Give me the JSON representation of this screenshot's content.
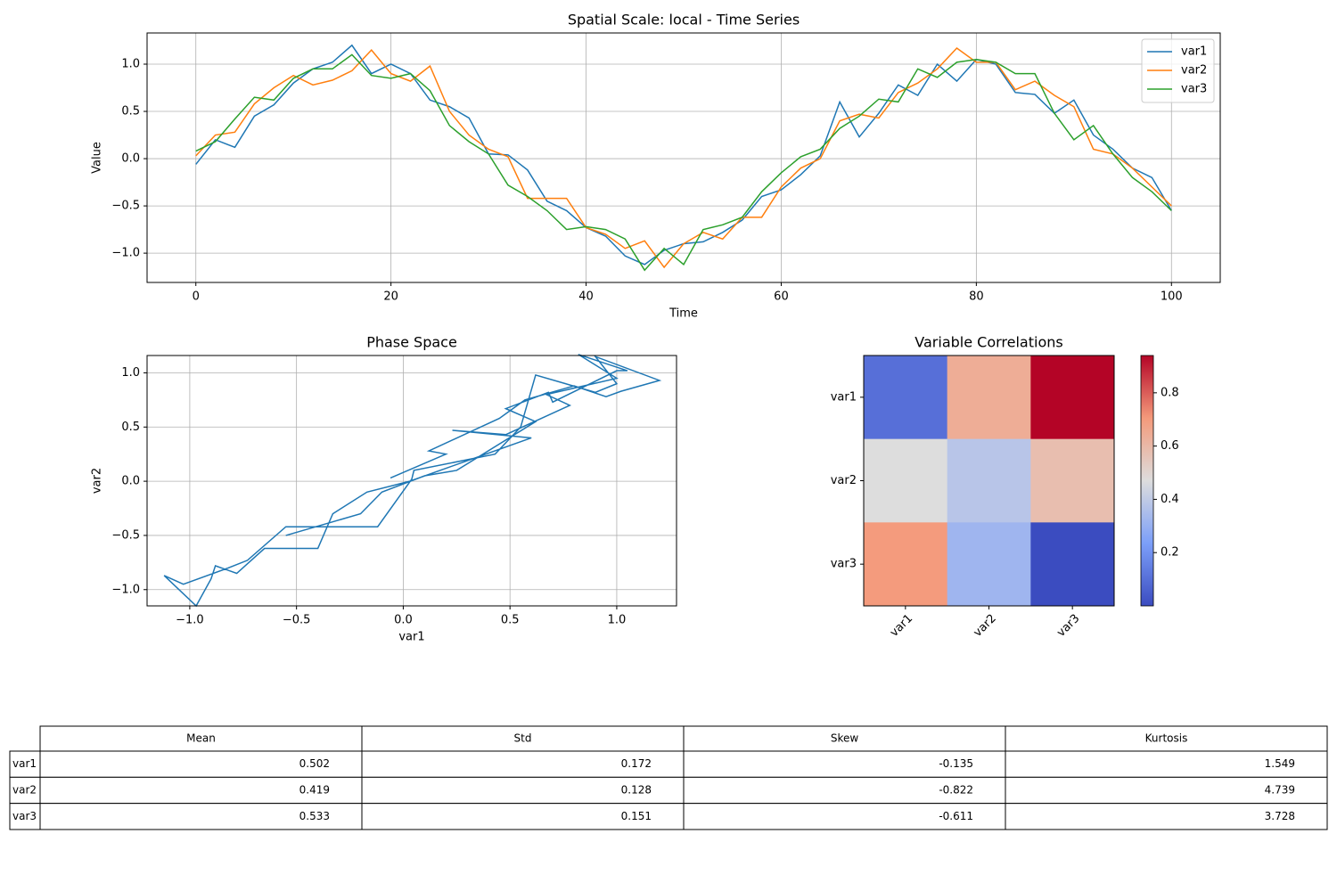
{
  "chart_data": [
    {
      "type": "line",
      "title": "Spatial Scale: local - Time Series",
      "xlabel": "Time",
      "ylabel": "Value",
      "x": [
        0,
        2,
        4,
        6,
        8,
        10,
        12,
        14,
        16,
        18,
        20,
        22,
        24,
        26,
        28,
        30,
        32,
        34,
        36,
        38,
        40,
        42,
        44,
        46,
        48,
        50,
        52,
        54,
        56,
        58,
        60,
        62,
        64,
        66,
        68,
        70,
        72,
        74,
        76,
        78,
        80,
        82,
        84,
        86,
        88,
        90,
        92,
        94,
        96,
        98,
        100
      ],
      "series": [
        {
          "name": "var1",
          "color": "#1f77b4",
          "values": [
            -0.06,
            0.2,
            0.12,
            0.45,
            0.57,
            0.8,
            0.95,
            1.02,
            1.2,
            0.9,
            1.0,
            0.9,
            0.62,
            0.55,
            0.43,
            0.05,
            0.04,
            -0.12,
            -0.45,
            -0.55,
            -0.73,
            -0.82,
            -1.03,
            -1.12,
            -0.97,
            -0.9,
            -0.88,
            -0.78,
            -0.65,
            -0.4,
            -0.33,
            -0.17,
            0.03,
            0.6,
            0.23,
            0.48,
            0.78,
            0.67,
            1.0,
            0.82,
            1.05,
            1.0,
            0.7,
            0.68,
            0.48,
            0.62,
            0.25,
            0.1,
            -0.1,
            -0.2,
            -0.55
          ]
        },
        {
          "name": "var2",
          "color": "#ff7f0e",
          "values": [
            0.03,
            0.25,
            0.28,
            0.58,
            0.75,
            0.88,
            0.78,
            0.83,
            0.93,
            1.15,
            0.9,
            0.82,
            0.98,
            0.5,
            0.25,
            0.1,
            0.02,
            -0.42,
            -0.42,
            -0.42,
            -0.73,
            -0.8,
            -0.95,
            -0.87,
            -1.15,
            -0.9,
            -0.78,
            -0.85,
            -0.62,
            -0.62,
            -0.3,
            -0.1,
            0.0,
            0.4,
            0.47,
            0.43,
            0.7,
            0.8,
            0.95,
            1.17,
            1.02,
            1.02,
            0.73,
            0.82,
            0.67,
            0.55,
            0.1,
            0.05,
            -0.1,
            -0.3,
            -0.5
          ]
        },
        {
          "name": "var3",
          "color": "#2ca02c",
          "values": [
            0.08,
            0.18,
            0.42,
            0.65,
            0.62,
            0.85,
            0.95,
            0.95,
            1.1,
            0.88,
            0.85,
            0.9,
            0.72,
            0.35,
            0.18,
            0.05,
            -0.28,
            -0.4,
            -0.55,
            -0.75,
            -0.72,
            -0.75,
            -0.85,
            -1.18,
            -0.95,
            -1.12,
            -0.75,
            -0.7,
            -0.62,
            -0.35,
            -0.15,
            0.02,
            0.1,
            0.32,
            0.45,
            0.63,
            0.6,
            0.95,
            0.86,
            1.02,
            1.05,
            1.02,
            0.9,
            0.9,
            0.48,
            0.2,
            0.35,
            0.05,
            -0.2,
            -0.35,
            -0.55
          ]
        }
      ],
      "xlim": [
        -5,
        105
      ],
      "ylim": [
        -1.31,
        1.33
      ],
      "xticks": [
        0,
        20,
        40,
        60,
        80,
        100
      ],
      "yticks": [
        {
          "value": -1,
          "label": "−1.0"
        },
        {
          "value": -0.5,
          "label": "−0.5"
        },
        {
          "value": 0,
          "label": "0.0"
        },
        {
          "value": 0.5,
          "label": "0.5"
        },
        {
          "value": 1,
          "label": "1.0"
        }
      ],
      "grid": true,
      "legend": "upper right"
    },
    {
      "type": "line",
      "title": "Phase Space",
      "xlabel": "var1",
      "ylabel": "var2",
      "color": "#1f77b4",
      "x": [
        -0.06,
        0.2,
        0.12,
        0.45,
        0.57,
        0.8,
        0.95,
        1.02,
        1.2,
        0.9,
        1.0,
        0.9,
        0.62,
        0.55,
        0.43,
        0.05,
        0.04,
        -0.12,
        -0.45,
        -0.55,
        -0.73,
        -0.82,
        -1.03,
        -1.12,
        -0.97,
        -0.9,
        -0.88,
        -0.78,
        -0.65,
        -0.4,
        -0.33,
        -0.17,
        0.03,
        0.6,
        0.23,
        0.48,
        0.78,
        0.67,
        1.0,
        0.82,
        1.05,
        1.0,
        0.7,
        0.68,
        0.48,
        0.62,
        0.25,
        0.1,
        -0.1,
        -0.2,
        -0.55
      ],
      "values": [
        0.03,
        0.25,
        0.28,
        0.58,
        0.75,
        0.88,
        0.78,
        0.83,
        0.93,
        1.15,
        0.9,
        0.82,
        0.98,
        0.5,
        0.25,
        0.1,
        0.02,
        -0.42,
        -0.42,
        -0.42,
        -0.73,
        -0.8,
        -0.95,
        -0.87,
        -1.15,
        -0.9,
        -0.78,
        -0.85,
        -0.62,
        -0.62,
        -0.3,
        -0.1,
        0.0,
        0.4,
        0.47,
        0.43,
        0.7,
        0.8,
        0.95,
        1.17,
        1.02,
        1.02,
        0.73,
        0.82,
        0.67,
        0.55,
        0.1,
        0.05,
        -0.1,
        -0.3,
        -0.5
      ],
      "xlim": [
        -1.2,
        1.28
      ],
      "ylim": [
        -1.15,
        1.16
      ],
      "xticks": [
        {
          "value": -1,
          "label": "−1.0"
        },
        {
          "value": -0.5,
          "label": "−0.5"
        },
        {
          "value": 0,
          "label": "0.0"
        },
        {
          "value": 0.5,
          "label": "0.5"
        },
        {
          "value": 1,
          "label": "1.0"
        }
      ],
      "yticks": [
        {
          "value": -1,
          "label": "−1.0"
        },
        {
          "value": -0.5,
          "label": "−0.5"
        },
        {
          "value": 0,
          "label": "0.0"
        },
        {
          "value": 0.5,
          "label": "0.5"
        },
        {
          "value": 1,
          "label": "1.0"
        }
      ],
      "grid": true
    },
    {
      "type": "heatmap",
      "title": "Variable Correlations",
      "rows": [
        "var1",
        "var2",
        "var3"
      ],
      "columns": [
        "var1",
        "var2",
        "var3"
      ],
      "values": [
        [
          0.1,
          0.64,
          0.94
        ],
        [
          0.47,
          0.38,
          0.58
        ],
        [
          0.7,
          0.32,
          0.0
        ]
      ],
      "clim": [
        0,
        0.94
      ],
      "cticks": [
        0.2,
        0.4,
        0.6,
        0.8
      ],
      "colormap": "coolwarm"
    },
    {
      "type": "table",
      "columns": [
        "Mean",
        "Std",
        "Skew",
        "Kurtosis"
      ],
      "rows": [
        "var1",
        "var2",
        "var3"
      ],
      "cells": [
        [
          0.502,
          0.172,
          -0.135,
          1.549
        ],
        [
          0.419,
          0.128,
          -0.822,
          4.739
        ],
        [
          0.533,
          0.151,
          -0.611,
          3.728
        ]
      ]
    }
  ]
}
